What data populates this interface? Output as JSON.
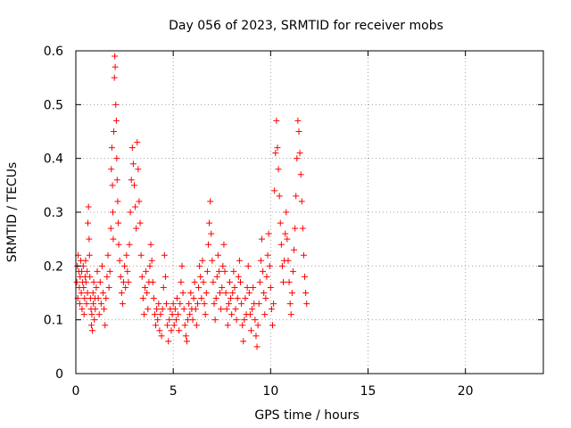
{
  "chart_data": {
    "type": "scatter",
    "title": "Day 056 of 2023, SRMTID for receiver mobs",
    "xlabel": "GPS time / hours",
    "ylabel": "SRMTID / TECUs",
    "xlim": [
      0,
      24
    ],
    "ylim": [
      0,
      0.6
    ],
    "xticks": [
      0,
      5,
      10,
      15,
      20
    ],
    "yticks": [
      0,
      0.1,
      0.2,
      0.3,
      0.4,
      0.5,
      0.6
    ],
    "xtick_labels": [
      "0",
      "5",
      "10",
      "15",
      "20"
    ],
    "ytick_labels": [
      "0",
      "0.1",
      "0.2",
      "0.3",
      "0.4",
      "0.5",
      "0.6"
    ],
    "grid": true,
    "marker": "+",
    "marker_color": "#ff0000",
    "series": [
      {
        "name": "SRMTID",
        "points": [
          [
            0.05,
            0.17
          ],
          [
            0.08,
            0.2
          ],
          [
            0.1,
            0.14
          ],
          [
            0.12,
            0.22
          ],
          [
            0.15,
            0.19
          ],
          [
            0.18,
            0.16
          ],
          [
            0.2,
            0.13
          ],
          [
            0.22,
            0.18
          ],
          [
            0.25,
            0.21
          ],
          [
            0.28,
            0.15
          ],
          [
            0.3,
            0.19
          ],
          [
            0.32,
            0.12
          ],
          [
            0.35,
            0.17
          ],
          [
            0.38,
            0.2
          ],
          [
            0.4,
            0.16
          ],
          [
            0.42,
            0.11
          ],
          [
            0.45,
            0.14
          ],
          [
            0.48,
            0.18
          ],
          [
            0.5,
            0.21
          ],
          [
            0.52,
            0.17
          ],
          [
            0.55,
            0.13
          ],
          [
            0.58,
            0.19
          ],
          [
            0.6,
            0.15
          ],
          [
            0.62,
            0.28
          ],
          [
            0.65,
            0.31
          ],
          [
            0.68,
            0.25
          ],
          [
            0.7,
            0.22
          ],
          [
            0.72,
            0.18
          ],
          [
            0.75,
            0.14
          ],
          [
            0.78,
            0.12
          ],
          [
            0.8,
            0.09
          ],
          [
            0.82,
            0.11
          ],
          [
            0.85,
            0.08
          ],
          [
            0.88,
            0.15
          ],
          [
            0.9,
            0.13
          ],
          [
            0.92,
            0.17
          ],
          [
            0.95,
            0.1
          ],
          [
            0.98,
            0.14
          ],
          [
            1.0,
            0.12
          ],
          [
            1.05,
            0.16
          ],
          [
            1.1,
            0.19
          ],
          [
            1.15,
            0.14
          ],
          [
            1.2,
            0.11
          ],
          [
            1.25,
            0.17
          ],
          [
            1.3,
            0.13
          ],
          [
            1.35,
            0.2
          ],
          [
            1.4,
            0.15
          ],
          [
            1.45,
            0.12
          ],
          [
            1.5,
            0.09
          ],
          [
            1.55,
            0.14
          ],
          [
            1.6,
            0.18
          ],
          [
            1.65,
            0.22
          ],
          [
            1.7,
            0.16
          ],
          [
            1.75,
            0.19
          ],
          [
            1.8,
            0.27
          ],
          [
            1.82,
            0.38
          ],
          [
            1.85,
            0.42
          ],
          [
            1.88,
            0.35
          ],
          [
            1.9,
            0.3
          ],
          [
            1.92,
            0.25
          ],
          [
            1.95,
            0.45
          ],
          [
            1.98,
            0.55
          ],
          [
            2.0,
            0.59
          ],
          [
            2.02,
            0.57
          ],
          [
            2.05,
            0.5
          ],
          [
            2.08,
            0.47
          ],
          [
            2.1,
            0.4
          ],
          [
            2.12,
            0.36
          ],
          [
            2.15,
            0.32
          ],
          [
            2.18,
            0.28
          ],
          [
            2.2,
            0.24
          ],
          [
            2.25,
            0.21
          ],
          [
            2.3,
            0.18
          ],
          [
            2.35,
            0.15
          ],
          [
            2.4,
            0.13
          ],
          [
            2.45,
            0.17
          ],
          [
            2.5,
            0.2
          ],
          [
            2.55,
            0.16
          ],
          [
            2.6,
            0.22
          ],
          [
            2.65,
            0.19
          ],
          [
            2.7,
            0.17
          ],
          [
            2.75,
            0.24
          ],
          [
            2.8,
            0.3
          ],
          [
            2.85,
            0.36
          ],
          [
            2.9,
            0.42
          ],
          [
            2.95,
            0.39
          ],
          [
            3.0,
            0.35
          ],
          [
            3.05,
            0.31
          ],
          [
            3.1,
            0.27
          ],
          [
            3.15,
            0.43
          ],
          [
            3.2,
            0.38
          ],
          [
            3.25,
            0.32
          ],
          [
            3.3,
            0.28
          ],
          [
            3.35,
            0.22
          ],
          [
            3.4,
            0.18
          ],
          [
            3.45,
            0.14
          ],
          [
            3.5,
            0.11
          ],
          [
            3.55,
            0.16
          ],
          [
            3.6,
            0.19
          ],
          [
            3.65,
            0.15
          ],
          [
            3.7,
            0.12
          ],
          [
            3.75,
            0.17
          ],
          [
            3.8,
            0.2
          ],
          [
            3.85,
            0.24
          ],
          [
            3.9,
            0.21
          ],
          [
            3.95,
            0.17
          ],
          [
            4.0,
            0.14
          ],
          [
            4.05,
            0.11
          ],
          [
            4.1,
            0.09
          ],
          [
            4.15,
            0.12
          ],
          [
            4.2,
            0.1
          ],
          [
            4.25,
            0.13
          ],
          [
            4.3,
            0.08
          ],
          [
            4.35,
            0.11
          ],
          [
            4.4,
            0.07
          ],
          [
            4.45,
            0.12
          ],
          [
            4.5,
            0.16
          ],
          [
            4.55,
            0.22
          ],
          [
            4.6,
            0.18
          ],
          [
            4.65,
            0.13
          ],
          [
            4.7,
            0.09
          ],
          [
            4.75,
            0.06
          ],
          [
            4.8,
            0.1
          ],
          [
            4.85,
            0.12
          ],
          [
            4.9,
            0.08
          ],
          [
            4.95,
            0.11
          ],
          [
            5.0,
            0.13
          ],
          [
            5.05,
            0.09
          ],
          [
            5.1,
            0.12
          ],
          [
            5.15,
            0.1
          ],
          [
            5.2,
            0.14
          ],
          [
            5.25,
            0.11
          ],
          [
            5.3,
            0.08
          ],
          [
            5.35,
            0.13
          ],
          [
            5.4,
            0.17
          ],
          [
            5.45,
            0.2
          ],
          [
            5.5,
            0.15
          ],
          [
            5.55,
            0.12
          ],
          [
            5.6,
            0.09
          ],
          [
            5.65,
            0.07
          ],
          [
            5.7,
            0.06
          ],
          [
            5.75,
            0.1
          ],
          [
            5.8,
            0.13
          ],
          [
            5.85,
            0.11
          ],
          [
            5.9,
            0.15
          ],
          [
            5.95,
            0.12
          ],
          [
            6.0,
            0.1
          ],
          [
            6.05,
            0.14
          ],
          [
            6.1,
            0.17
          ],
          [
            6.15,
            0.12
          ],
          [
            6.2,
            0.09
          ],
          [
            6.25,
            0.13
          ],
          [
            6.3,
            0.16
          ],
          [
            6.35,
            0.2
          ],
          [
            6.4,
            0.18
          ],
          [
            6.45,
            0.14
          ],
          [
            6.5,
            0.21
          ],
          [
            6.55,
            0.17
          ],
          [
            6.6,
            0.13
          ],
          [
            6.65,
            0.11
          ],
          [
            6.7,
            0.15
          ],
          [
            6.75,
            0.19
          ],
          [
            6.8,
            0.24
          ],
          [
            6.85,
            0.28
          ],
          [
            6.9,
            0.32
          ],
          [
            6.95,
            0.26
          ],
          [
            7.0,
            0.21
          ],
          [
            7.05,
            0.17
          ],
          [
            7.1,
            0.13
          ],
          [
            7.15,
            0.1
          ],
          [
            7.2,
            0.14
          ],
          [
            7.25,
            0.18
          ],
          [
            7.3,
            0.22
          ],
          [
            7.35,
            0.19
          ],
          [
            7.4,
            0.15
          ],
          [
            7.45,
            0.12
          ],
          [
            7.5,
            0.16
          ],
          [
            7.55,
            0.2
          ],
          [
            7.6,
            0.24
          ],
          [
            7.65,
            0.19
          ],
          [
            7.7,
            0.15
          ],
          [
            7.75,
            0.12
          ],
          [
            7.8,
            0.09
          ],
          [
            7.85,
            0.13
          ],
          [
            7.9,
            0.17
          ],
          [
            7.95,
            0.14
          ],
          [
            8.0,
            0.11
          ],
          [
            8.05,
            0.15
          ],
          [
            8.1,
            0.19
          ],
          [
            8.15,
            0.16
          ],
          [
            8.2,
            0.12
          ],
          [
            8.25,
            0.1
          ],
          [
            8.3,
            0.14
          ],
          [
            8.35,
            0.18
          ],
          [
            8.4,
            0.21
          ],
          [
            8.45,
            0.17
          ],
          [
            8.5,
            0.13
          ],
          [
            8.55,
            0.09
          ],
          [
            8.6,
            0.06
          ],
          [
            8.65,
            0.1
          ],
          [
            8.7,
            0.14
          ],
          [
            8.75,
            0.11
          ],
          [
            8.8,
            0.16
          ],
          [
            8.85,
            0.2
          ],
          [
            8.9,
            0.15
          ],
          [
            8.95,
            0.11
          ],
          [
            9.0,
            0.08
          ],
          [
            9.05,
            0.12
          ],
          [
            9.1,
            0.16
          ],
          [
            9.15,
            0.13
          ],
          [
            9.2,
            0.1
          ],
          [
            9.25,
            0.07
          ],
          [
            9.3,
            0.05
          ],
          [
            9.35,
            0.09
          ],
          [
            9.4,
            0.13
          ],
          [
            9.45,
            0.17
          ],
          [
            9.5,
            0.21
          ],
          [
            9.55,
            0.25
          ],
          [
            9.6,
            0.19
          ],
          [
            9.65,
            0.15
          ],
          [
            9.7,
            0.11
          ],
          [
            9.75,
            0.14
          ],
          [
            9.8,
            0.18
          ],
          [
            9.85,
            0.22
          ],
          [
            9.9,
            0.26
          ],
          [
            9.95,
            0.2
          ],
          [
            10.0,
            0.16
          ],
          [
            10.05,
            0.12
          ],
          [
            10.1,
            0.09
          ],
          [
            10.15,
            0.13
          ],
          [
            10.2,
            0.34
          ],
          [
            10.25,
            0.41
          ],
          [
            10.3,
            0.47
          ],
          [
            10.35,
            0.42
          ],
          [
            10.4,
            0.38
          ],
          [
            10.45,
            0.33
          ],
          [
            10.5,
            0.28
          ],
          [
            10.55,
            0.24
          ],
          [
            10.6,
            0.2
          ],
          [
            10.65,
            0.17
          ],
          [
            10.7,
            0.21
          ],
          [
            10.75,
            0.26
          ],
          [
            10.8,
            0.3
          ],
          [
            10.85,
            0.25
          ],
          [
            10.9,
            0.21
          ],
          [
            10.95,
            0.17
          ],
          [
            11.0,
            0.13
          ],
          [
            11.05,
            0.11
          ],
          [
            11.1,
            0.15
          ],
          [
            11.15,
            0.19
          ],
          [
            11.2,
            0.23
          ],
          [
            11.25,
            0.27
          ],
          [
            11.3,
            0.33
          ],
          [
            11.35,
            0.4
          ],
          [
            11.4,
            0.47
          ],
          [
            11.45,
            0.45
          ],
          [
            11.5,
            0.41
          ],
          [
            11.55,
            0.37
          ],
          [
            11.6,
            0.32
          ],
          [
            11.65,
            0.27
          ],
          [
            11.7,
            0.22
          ],
          [
            11.75,
            0.18
          ],
          [
            11.8,
            0.15
          ],
          [
            11.85,
            0.13
          ]
        ]
      }
    ]
  }
}
